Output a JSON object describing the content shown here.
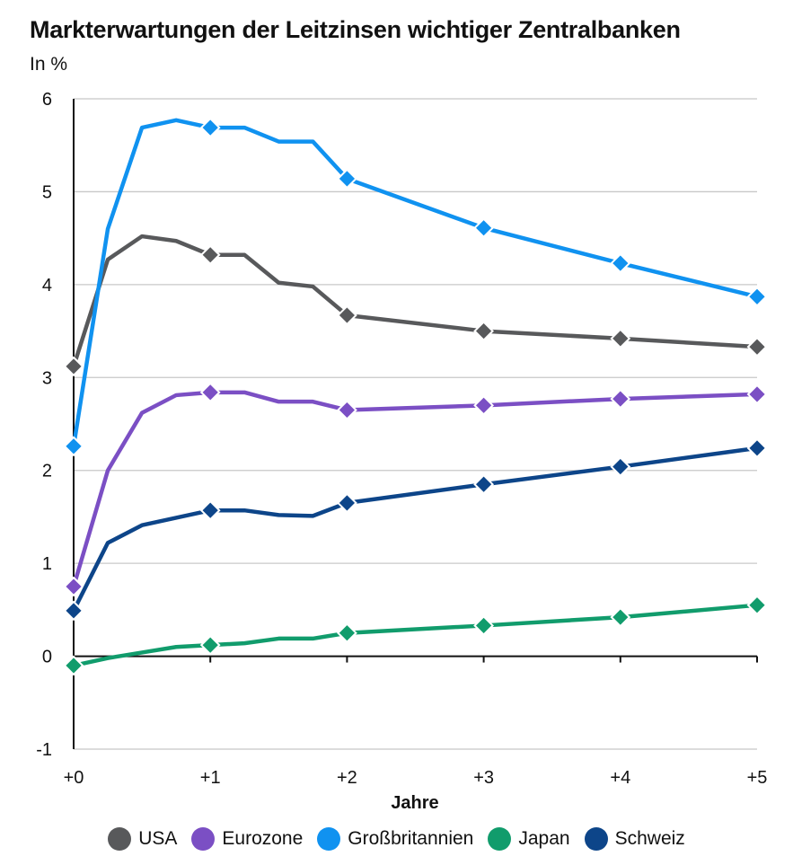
{
  "chart_data": {
    "type": "line",
    "title": "Markterwartungen der Leitzinsen wichtiger Zentralbanken",
    "subtitle": "In %",
    "xlabel": "Jahre",
    "ylabel": "",
    "xlim": [
      0,
      5
    ],
    "ylim": [
      -1,
      6
    ],
    "grid": true,
    "legend_position": "bottom",
    "x_ticks": [
      0,
      1,
      2,
      3,
      4,
      5
    ],
    "x_tick_labels": [
      "+0",
      "+1",
      "+2",
      "+3",
      "+4",
      "+5"
    ],
    "y_ticks": [
      -1,
      0,
      1,
      2,
      3,
      4,
      5,
      6
    ],
    "y_tick_labels": [
      "-1",
      "0",
      "1",
      "2",
      "3",
      "4",
      "5",
      "6"
    ],
    "x": [
      0,
      0.25,
      0.5,
      0.75,
      1,
      1.25,
      1.5,
      1.75,
      2,
      3,
      4,
      5
    ],
    "marker_x": [
      0,
      1,
      2,
      3,
      4,
      5
    ],
    "series": [
      {
        "name": "USA",
        "color": "#58595b",
        "values": [
          3.12,
          4.27,
          4.52,
          4.47,
          4.32,
          4.32,
          4.02,
          3.98,
          3.67,
          3.5,
          3.42,
          3.33
        ]
      },
      {
        "name": "Eurozone",
        "color": "#7b4fc4",
        "values": [
          0.75,
          2.0,
          2.62,
          2.81,
          2.84,
          2.84,
          2.74,
          2.74,
          2.65,
          2.7,
          2.77,
          2.82
        ]
      },
      {
        "name": "Großbritannien",
        "color": "#1092f0",
        "values": [
          2.26,
          4.6,
          5.69,
          5.77,
          5.69,
          5.69,
          5.54,
          5.54,
          5.14,
          4.61,
          4.23,
          3.87
        ]
      },
      {
        "name": "Japan",
        "color": "#119c6c",
        "values": [
          -0.1,
          -0.02,
          0.04,
          0.1,
          0.12,
          0.14,
          0.19,
          0.19,
          0.25,
          0.33,
          0.42,
          0.55
        ]
      },
      {
        "name": "Schweiz",
        "color": "#0d4589",
        "values": [
          0.49,
          1.22,
          1.41,
          1.49,
          1.57,
          1.57,
          1.52,
          1.51,
          1.65,
          1.85,
          2.04,
          2.24
        ]
      }
    ]
  }
}
